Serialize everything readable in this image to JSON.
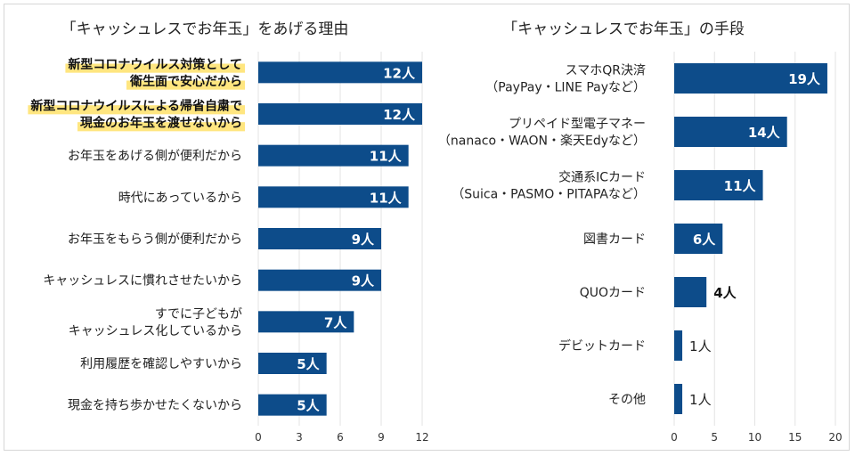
{
  "colors": {
    "bar": "#0d4c8a",
    "highlight": "#ffe680",
    "grid": "#e3e3e3"
  },
  "chart_data": [
    {
      "type": "bar",
      "orientation": "horizontal",
      "title": "「キャッシュレスでお年玉」をあげる理由",
      "unit": "人",
      "xlim": [
        0,
        12
      ],
      "ticks": [
        0,
        3,
        6,
        9,
        12
      ],
      "categories": [
        [
          "新型コロナウイルス対策として",
          "衛生面で安心だから"
        ],
        [
          "新型コロナウイルスによる帰省自粛で",
          "現金のお年玉を渡せないから"
        ],
        [
          "お年玉をあげる側が便利だから"
        ],
        [
          "時代にあっているから"
        ],
        [
          "お年玉をもらう側が便利だから"
        ],
        [
          "キャッシュレスに慣れさせたいから"
        ],
        [
          "すでに子どもが",
          "キャッシュレス化しているから"
        ],
        [
          "利用履歴を確認しやすいから"
        ],
        [
          "現金を持ち歩かせたくないから"
        ]
      ],
      "highlighted": [
        true,
        true,
        false,
        false,
        false,
        false,
        false,
        false,
        false
      ],
      "values": [
        12,
        12,
        11,
        11,
        9,
        9,
        7,
        5,
        5
      ],
      "data_labels": [
        "12人",
        "12人",
        "11人",
        "11人",
        "9人",
        "9人",
        "7人",
        "5人",
        "5人"
      ]
    },
    {
      "type": "bar",
      "orientation": "horizontal",
      "title": "「キャッシュレスでお年玉」の手段",
      "unit": "人",
      "xlim": [
        0,
        20
      ],
      "ticks": [
        0,
        5,
        10,
        15,
        20
      ],
      "categories": [
        [
          "スマホQR決済",
          "（PayPay・LINE Payなど）"
        ],
        [
          "プリペイド型電子マネー",
          "（nanaco・WAON・楽天Edyなど）"
        ],
        [
          "交通系ICカード",
          "（Suica・PASMO・PITAPAなど）"
        ],
        [
          "図書カード"
        ],
        [
          "QUOカード"
        ],
        [
          "デビットカード"
        ],
        [
          "その他"
        ]
      ],
      "highlighted": [
        false,
        false,
        false,
        false,
        false,
        false,
        false
      ],
      "values": [
        19,
        14,
        11,
        6,
        4,
        1,
        1
      ],
      "data_labels": [
        "19人",
        "14人",
        "11人",
        "6人",
        "4人",
        "1人",
        "1人"
      ]
    }
  ]
}
